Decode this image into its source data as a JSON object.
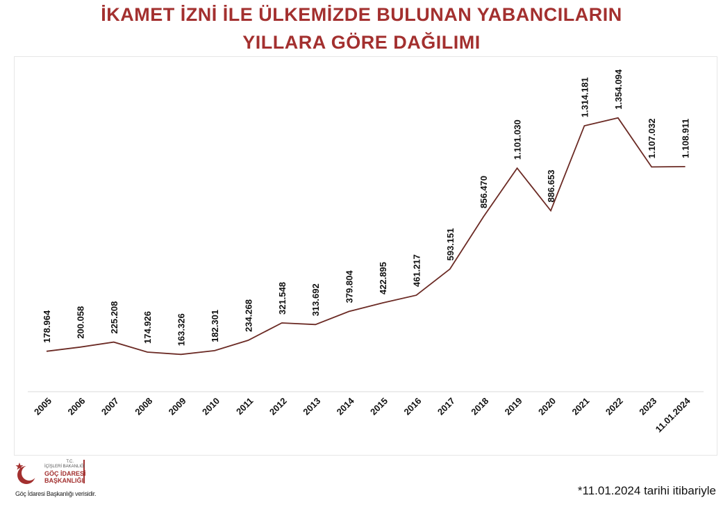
{
  "title_line1": "İKAMET İZNİ İLE ÜLKEMİZDE BULUNAN YABANCILARIN",
  "title_line2": "YILLARA GÖRE DAĞILIMI",
  "colors": {
    "title": "#a3302f",
    "line": "#6b2a24",
    "brand": "#a3302f"
  },
  "logo": {
    "icon": "crescent-star-icon",
    "line1": "T.C.",
    "line2": "İÇİŞLERİ BAKANLIĞI",
    "line3": "GÖÇ İDARESİ",
    "line4": "BAŞKANLIĞI"
  },
  "source": "Göç İdaresi Başkanlığı verisidir.",
  "note": "*11.01.2024 tarihi itibariyle",
  "chart_data": {
    "type": "line",
    "categories": [
      "2005",
      "2006",
      "2007",
      "2008",
      "2009",
      "2010",
      "2011",
      "2012",
      "2013",
      "2014",
      "2015",
      "2016",
      "2017",
      "2018",
      "2019",
      "2020",
      "2021",
      "2022",
      "2023",
      "11.01.2024"
    ],
    "values": [
      178964,
      200058,
      225208,
      174926,
      163326,
      182301,
      234268,
      321548,
      313692,
      379804,
      422895,
      461217,
      593151,
      856470,
      1101030,
      886653,
      1314181,
      1354094,
      1107032,
      1108911
    ],
    "value_labels": [
      "178.964",
      "200.058",
      "225.208",
      "174.926",
      "163.326",
      "182.301",
      "234.268",
      "321.548",
      "313.692",
      "379.804",
      "422.895",
      "461.217",
      "593.151",
      "856.470",
      "1.101.030",
      "886.653",
      "1.314.181",
      "1.354.094",
      "1.107.032",
      "1.108.911"
    ],
    "title": "İKAMET İZNİ İLE ÜLKEMİZDE BULUNAN YABANCILARIN YILLARA GÖRE DAĞILIMI",
    "grid": false,
    "legend": "none"
  }
}
